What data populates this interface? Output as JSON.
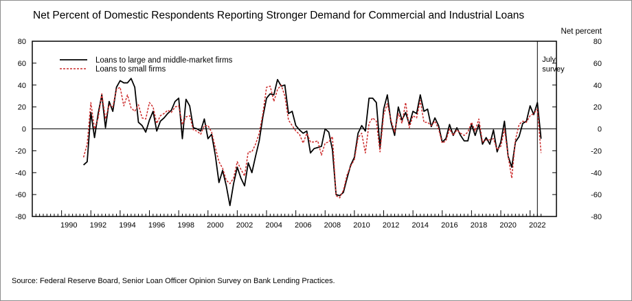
{
  "title": "Net Percent of Domestic Respondents Reporting Stronger Demand for Commercial and Industrial Loans",
  "source": "Source:  Federal Reserve Board, Senior Loan Officer Opinion Survey on Bank Lending Practices.",
  "chart_data": {
    "type": "line",
    "ylabel": "Net percent",
    "ylim": [
      -80,
      80
    ],
    "yticks": [
      -80,
      -60,
      -40,
      -20,
      0,
      20,
      40,
      60,
      80
    ],
    "xlim": [
      1988.0,
      2023.8
    ],
    "xticks": [
      1990,
      1992,
      1994,
      1996,
      1998,
      2000,
      2002,
      2004,
      2006,
      2008,
      2010,
      2012,
      2014,
      2016,
      2018,
      2020,
      2022
    ],
    "annotation": {
      "x": 2022.5,
      "line1": "July",
      "line2": "survey"
    },
    "legend_position": "top-left",
    "series": [
      {
        "name": "Loans to large and middle-market firms",
        "color": "#000000",
        "style": "solid",
        "points": [
          [
            1991.5,
            -33
          ],
          [
            1991.75,
            -30
          ],
          [
            1992.0,
            15
          ],
          [
            1992.25,
            -8
          ],
          [
            1992.5,
            14
          ],
          [
            1992.75,
            31
          ],
          [
            1993.0,
            1
          ],
          [
            1993.25,
            25
          ],
          [
            1993.5,
            16
          ],
          [
            1993.75,
            38
          ],
          [
            1994.0,
            44
          ],
          [
            1994.25,
            42
          ],
          [
            1994.5,
            42
          ],
          [
            1994.75,
            46
          ],
          [
            1995.0,
            38
          ],
          [
            1995.25,
            6
          ],
          [
            1995.5,
            3
          ],
          [
            1995.75,
            -3
          ],
          [
            1996.0,
            8
          ],
          [
            1996.25,
            16
          ],
          [
            1996.5,
            -2
          ],
          [
            1996.75,
            7
          ],
          [
            1997.0,
            10
          ],
          [
            1997.25,
            14
          ],
          [
            1997.5,
            17
          ],
          [
            1997.75,
            25
          ],
          [
            1998.0,
            28
          ],
          [
            1998.25,
            -9
          ],
          [
            1998.5,
            27
          ],
          [
            1998.75,
            21
          ],
          [
            1999.0,
            1
          ],
          [
            1999.25,
            0
          ],
          [
            1999.5,
            -2
          ],
          [
            1999.75,
            9
          ],
          [
            2000.0,
            -9
          ],
          [
            2000.25,
            -5
          ],
          [
            2000.5,
            -24
          ],
          [
            2000.75,
            -49
          ],
          [
            2001.0,
            -38
          ],
          [
            2001.25,
            -52
          ],
          [
            2001.5,
            -70
          ],
          [
            2001.75,
            -50
          ],
          [
            2002.0,
            -35
          ],
          [
            2002.25,
            -45
          ],
          [
            2002.5,
            -52
          ],
          [
            2002.75,
            -31
          ],
          [
            2003.0,
            -40
          ],
          [
            2003.25,
            -25
          ],
          [
            2003.5,
            -11
          ],
          [
            2003.75,
            11
          ],
          [
            2004.0,
            28
          ],
          [
            2004.25,
            32
          ],
          [
            2004.5,
            31
          ],
          [
            2004.75,
            45
          ],
          [
            2005.0,
            39
          ],
          [
            2005.25,
            40
          ],
          [
            2005.5,
            14
          ],
          [
            2005.75,
            16
          ],
          [
            2006.0,
            3
          ],
          [
            2006.25,
            -1
          ],
          [
            2006.5,
            -4
          ],
          [
            2006.75,
            -2
          ],
          [
            2007.0,
            -22
          ],
          [
            2007.25,
            -18
          ],
          [
            2007.5,
            -17
          ],
          [
            2007.75,
            -16
          ],
          [
            2008.0,
            0
          ],
          [
            2008.25,
            -3
          ],
          [
            2008.5,
            -19
          ],
          [
            2008.75,
            -60
          ],
          [
            2009.0,
            -61
          ],
          [
            2009.25,
            -58
          ],
          [
            2009.5,
            -45
          ],
          [
            2009.75,
            -33
          ],
          [
            2010.0,
            -26
          ],
          [
            2010.25,
            -4
          ],
          [
            2010.5,
            3
          ],
          [
            2010.75,
            -2
          ],
          [
            2011.0,
            28
          ],
          [
            2011.25,
            28
          ],
          [
            2011.5,
            24
          ],
          [
            2011.75,
            -17
          ],
          [
            2012.0,
            18
          ],
          [
            2012.25,
            31
          ],
          [
            2012.5,
            6
          ],
          [
            2012.75,
            -6
          ],
          [
            2013.0,
            20
          ],
          [
            2013.25,
            8
          ],
          [
            2013.5,
            15
          ],
          [
            2013.75,
            4
          ],
          [
            2014.0,
            16
          ],
          [
            2014.25,
            14
          ],
          [
            2014.5,
            31
          ],
          [
            2014.75,
            16
          ],
          [
            2015.0,
            18
          ],
          [
            2015.25,
            2
          ],
          [
            2015.5,
            10
          ],
          [
            2015.75,
            3
          ],
          [
            2016.0,
            -12
          ],
          [
            2016.25,
            -9
          ],
          [
            2016.5,
            4
          ],
          [
            2016.75,
            -6
          ],
          [
            2017.0,
            1
          ],
          [
            2017.25,
            -6
          ],
          [
            2017.5,
            -11
          ],
          [
            2017.75,
            -11
          ],
          [
            2018.0,
            4
          ],
          [
            2018.25,
            -6
          ],
          [
            2018.5,
            4
          ],
          [
            2018.75,
            -14
          ],
          [
            2019.0,
            -8
          ],
          [
            2019.25,
            -14
          ],
          [
            2019.5,
            -1
          ],
          [
            2019.75,
            -21
          ],
          [
            2020.0,
            -12
          ],
          [
            2020.25,
            7
          ],
          [
            2020.5,
            -25
          ],
          [
            2020.75,
            -35
          ],
          [
            2021.0,
            -12
          ],
          [
            2021.25,
            -7
          ],
          [
            2021.5,
            5
          ],
          [
            2021.75,
            7
          ],
          [
            2022.0,
            21
          ],
          [
            2022.25,
            13
          ],
          [
            2022.5,
            24
          ],
          [
            2022.75,
            -9
          ]
        ]
      },
      {
        "name": "Loans to small firms",
        "color": "#cc2a2a",
        "style": "dashed",
        "points": [
          [
            1991.5,
            -26
          ],
          [
            1991.75,
            -14
          ],
          [
            1992.0,
            24
          ],
          [
            1992.25,
            0
          ],
          [
            1992.5,
            10
          ],
          [
            1992.75,
            32
          ],
          [
            1993.0,
            9
          ],
          [
            1993.25,
            22
          ],
          [
            1993.5,
            20
          ],
          [
            1993.75,
            36
          ],
          [
            1994.0,
            38
          ],
          [
            1994.25,
            21
          ],
          [
            1994.5,
            31
          ],
          [
            1994.75,
            19
          ],
          [
            1995.0,
            16
          ],
          [
            1995.25,
            22
          ],
          [
            1995.5,
            10
          ],
          [
            1995.75,
            9
          ],
          [
            1996.0,
            24
          ],
          [
            1996.25,
            20
          ],
          [
            1996.5,
            5
          ],
          [
            1996.75,
            12
          ],
          [
            1997.0,
            14
          ],
          [
            1997.25,
            17
          ],
          [
            1997.5,
            15
          ],
          [
            1997.75,
            20
          ],
          [
            1998.0,
            21
          ],
          [
            1998.25,
            4
          ],
          [
            1998.5,
            11
          ],
          [
            1998.75,
            12
          ],
          [
            1999.0,
            -1
          ],
          [
            1999.25,
            -2
          ],
          [
            1999.5,
            -5
          ],
          [
            1999.75,
            3
          ],
          [
            2000.0,
            3
          ],
          [
            2000.25,
            -3
          ],
          [
            2000.5,
            -17
          ],
          [
            2000.75,
            -30
          ],
          [
            2001.0,
            -36
          ],
          [
            2001.25,
            -47
          ],
          [
            2001.5,
            -50
          ],
          [
            2001.75,
            -45
          ],
          [
            2002.0,
            -30
          ],
          [
            2002.25,
            -37
          ],
          [
            2002.5,
            -43
          ],
          [
            2002.75,
            -21
          ],
          [
            2003.0,
            -21
          ],
          [
            2003.25,
            -14
          ],
          [
            2003.5,
            -4
          ],
          [
            2003.75,
            14
          ],
          [
            2004.0,
            38
          ],
          [
            2004.25,
            39
          ],
          [
            2004.5,
            25
          ],
          [
            2004.75,
            36
          ],
          [
            2005.0,
            40
          ],
          [
            2005.25,
            30
          ],
          [
            2005.5,
            8
          ],
          [
            2005.75,
            3
          ],
          [
            2006.0,
            -2
          ],
          [
            2006.25,
            -5
          ],
          [
            2006.5,
            -13
          ],
          [
            2006.75,
            -4
          ],
          [
            2007.0,
            -12
          ],
          [
            2007.25,
            -12
          ],
          [
            2007.5,
            -11
          ],
          [
            2007.75,
            -24
          ],
          [
            2008.0,
            -13
          ],
          [
            2008.25,
            -12
          ],
          [
            2008.5,
            -7
          ],
          [
            2008.75,
            -61
          ],
          [
            2009.0,
            -63
          ],
          [
            2009.25,
            -56
          ],
          [
            2009.5,
            -42
          ],
          [
            2009.75,
            -34
          ],
          [
            2010.0,
            -28
          ],
          [
            2010.25,
            -8
          ],
          [
            2010.5,
            -4
          ],
          [
            2010.75,
            -22
          ],
          [
            2011.0,
            5
          ],
          [
            2011.25,
            10
          ],
          [
            2011.5,
            7
          ],
          [
            2011.75,
            -21
          ],
          [
            2012.0,
            13
          ],
          [
            2012.25,
            23
          ],
          [
            2012.5,
            8
          ],
          [
            2012.75,
            -3
          ],
          [
            2013.0,
            14
          ],
          [
            2013.25,
            5
          ],
          [
            2013.5,
            24
          ],
          [
            2013.75,
            1
          ],
          [
            2014.0,
            12
          ],
          [
            2014.25,
            10
          ],
          [
            2014.5,
            26
          ],
          [
            2014.75,
            6
          ],
          [
            2015.0,
            6
          ],
          [
            2015.25,
            3
          ],
          [
            2015.5,
            7
          ],
          [
            2015.75,
            0
          ],
          [
            2016.0,
            -13
          ],
          [
            2016.25,
            -11
          ],
          [
            2016.5,
            0
          ],
          [
            2016.75,
            -6
          ],
          [
            2017.0,
            -1
          ],
          [
            2017.25,
            -4
          ],
          [
            2017.5,
            -6
          ],
          [
            2017.75,
            -3
          ],
          [
            2018.0,
            6
          ],
          [
            2018.25,
            -2
          ],
          [
            2018.5,
            9
          ],
          [
            2018.75,
            -12
          ],
          [
            2019.0,
            -10
          ],
          [
            2019.25,
            -10
          ],
          [
            2019.5,
            -9
          ],
          [
            2019.75,
            -19
          ],
          [
            2020.0,
            -16
          ],
          [
            2020.25,
            0
          ],
          [
            2020.5,
            -25
          ],
          [
            2020.75,
            -45
          ],
          [
            2021.0,
            -10
          ],
          [
            2021.25,
            4
          ],
          [
            2021.5,
            7
          ],
          [
            2021.75,
            6
          ],
          [
            2022.0,
            12
          ],
          [
            2022.25,
            14
          ],
          [
            2022.5,
            18
          ],
          [
            2022.75,
            -22
          ]
        ]
      }
    ]
  }
}
